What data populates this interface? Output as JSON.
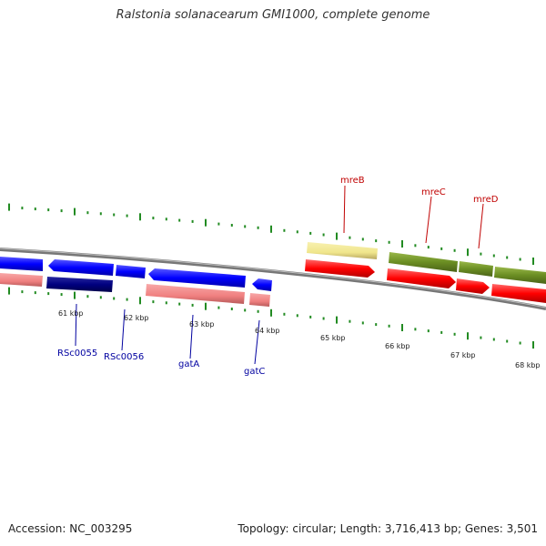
{
  "title": "Ralstonia solanacearum GMI1000, complete genome",
  "accession": "Accession: NC_003295",
  "summary": "Topology: circular; Length: 3,716,413 bp; Genes: 3,501",
  "ticks": [
    "61 kbp",
    "62 kbp",
    "63 kbp",
    "64 kbp",
    "65 kbp",
    "66 kbp",
    "67 kbp",
    "68 kbp"
  ],
  "genes_top": [
    {
      "name": "mreB",
      "color": "#c00000"
    },
    {
      "name": "mreC",
      "color": "#c00000"
    },
    {
      "name": "mreD",
      "color": "#c00000"
    }
  ],
  "genes_bottom": [
    {
      "name": "RSc0055",
      "color": "#0000a0"
    },
    {
      "name": "RSc0056",
      "color": "#0000a0"
    },
    {
      "name": "gatA",
      "color": "#0000a0"
    },
    {
      "name": "gatC",
      "color": "#0000a0"
    }
  ],
  "colors": {
    "forward_feature": "#ff0000",
    "forward_feature_pale": "#f08080",
    "reverse_feature": "#0000ff",
    "reverse_feature_dark": "#000080",
    "operon_green": "#6b8e23",
    "operon_yellow": "#f0e68c",
    "tick_green": "#228b22",
    "backbone": "#888888"
  }
}
